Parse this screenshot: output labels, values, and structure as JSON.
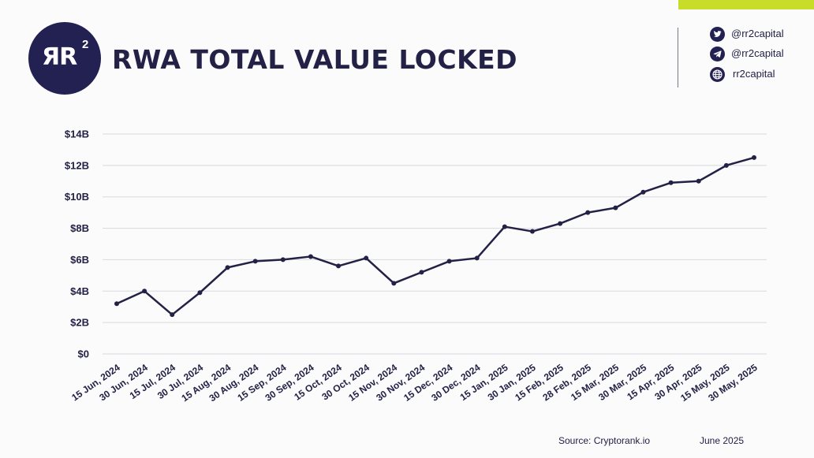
{
  "header": {
    "title": "RWA TOTAL VALUE LOCKED",
    "logo_text": "ЯR",
    "logo_superscript": "2"
  },
  "social": [
    {
      "icon": "twitter-icon",
      "label": "@rr2capital"
    },
    {
      "icon": "telegram-icon",
      "label": "@rr2capital"
    },
    {
      "icon": "globe-icon",
      "label": "rr2capital"
    }
  ],
  "footer": {
    "source": "Source: Cryptorank.io",
    "date": "June 2025"
  },
  "colors": {
    "accent": "#c8dc2a",
    "navy": "#232052",
    "line": "#232145",
    "grid": "#d9d9de"
  },
  "chart_data": {
    "type": "line",
    "title": "RWA TOTAL VALUE LOCKED",
    "xlabel": "",
    "ylabel": "",
    "ylim": [
      0,
      14
    ],
    "y_ticks": [
      {
        "value": 0,
        "label": "$0"
      },
      {
        "value": 2,
        "label": "$2B"
      },
      {
        "value": 4,
        "label": "$4B"
      },
      {
        "value": 6,
        "label": "$6B"
      },
      {
        "value": 8,
        "label": "$8B"
      },
      {
        "value": 10,
        "label": "$10B"
      },
      {
        "value": 12,
        "label": "$12B"
      },
      {
        "value": 14,
        "label": "$14B"
      }
    ],
    "grid": true,
    "categories": [
      "15 Jun, 2024",
      "30 Jun, 2024",
      "15 Jul, 2024",
      "30 Jul, 2024",
      "15 Aug, 2024",
      "30 Aug, 2024",
      "15 Sep, 2024",
      "30 Sep, 2024",
      "15 Oct, 2024",
      "30 Oct, 2024",
      "15 Nov, 2024",
      "30 Nov, 2024",
      "15 Dec, 2024",
      "30 Dec, 2024",
      "15 Jan, 2025",
      "30 Jan, 2025",
      "15 Feb, 2025",
      "28 Feb, 2025",
      "15 Mar, 2025",
      "30 Mar, 2025",
      "15 Apr, 2025",
      "30 Apr, 2025",
      "15 May, 2025",
      "30 May, 2025"
    ],
    "series": [
      {
        "values": [
          3.2,
          4.0,
          2.5,
          3.9,
          5.5,
          5.9,
          6.0,
          6.2,
          5.6,
          6.1,
          4.5,
          5.2,
          5.9,
          6.1,
          8.1,
          7.8,
          8.3,
          9.0,
          9.3,
          10.3,
          10.9,
          11.0,
          12.0,
          12.5
        ]
      }
    ]
  }
}
